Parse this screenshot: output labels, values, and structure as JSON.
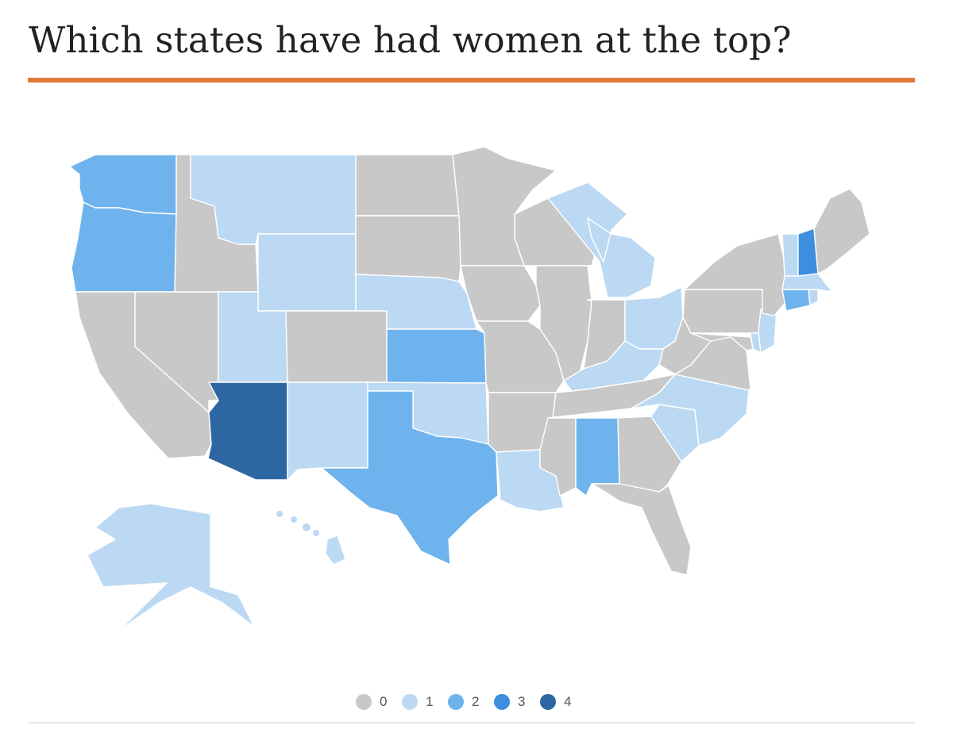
{
  "header": {
    "title": "Which states have had women at the top?",
    "accent_color": "#e07b39"
  },
  "legend": {
    "items": [
      {
        "label": "0",
        "value": 0,
        "color": "#c8c8c8"
      },
      {
        "label": "1",
        "value": 1,
        "color": "#bcd9f3"
      },
      {
        "label": "2",
        "value": 2,
        "color": "#6fb3ee"
      },
      {
        "label": "3",
        "value": 3,
        "color": "#3e8ee0"
      },
      {
        "label": "4",
        "value": 4,
        "color": "#2c67a1"
      }
    ]
  },
  "map": {
    "type": "choropleth",
    "states": [
      {
        "name": "Washington",
        "value": 2
      },
      {
        "name": "Oregon",
        "value": 2
      },
      {
        "name": "California",
        "value": 0
      },
      {
        "name": "Nevada",
        "value": 0
      },
      {
        "name": "Idaho",
        "value": 0
      },
      {
        "name": "Montana",
        "value": 1
      },
      {
        "name": "Wyoming",
        "value": 1
      },
      {
        "name": "Utah",
        "value": 1
      },
      {
        "name": "Arizona",
        "value": 4
      },
      {
        "name": "Colorado",
        "value": 0
      },
      {
        "name": "New Mexico",
        "value": 1
      },
      {
        "name": "North Dakota",
        "value": 0
      },
      {
        "name": "South Dakota",
        "value": 0
      },
      {
        "name": "Nebraska",
        "value": 1
      },
      {
        "name": "Kansas",
        "value": 2
      },
      {
        "name": "Oklahoma",
        "value": 1
      },
      {
        "name": "Texas",
        "value": 2
      },
      {
        "name": "Minnesota",
        "value": 0
      },
      {
        "name": "Iowa",
        "value": 0
      },
      {
        "name": "Missouri",
        "value": 0
      },
      {
        "name": "Arkansas",
        "value": 0
      },
      {
        "name": "Louisiana",
        "value": 1
      },
      {
        "name": "Wisconsin",
        "value": 0
      },
      {
        "name": "Illinois",
        "value": 0
      },
      {
        "name": "Michigan",
        "value": 1
      },
      {
        "name": "Indiana",
        "value": 0
      },
      {
        "name": "Ohio",
        "value": 1
      },
      {
        "name": "Kentucky",
        "value": 1
      },
      {
        "name": "Tennessee",
        "value": 0
      },
      {
        "name": "Mississippi",
        "value": 0
      },
      {
        "name": "Alabama",
        "value": 2
      },
      {
        "name": "Georgia",
        "value": 0
      },
      {
        "name": "Florida",
        "value": 0
      },
      {
        "name": "South Carolina",
        "value": 1
      },
      {
        "name": "North Carolina",
        "value": 1
      },
      {
        "name": "Virginia",
        "value": 0
      },
      {
        "name": "West Virginia",
        "value": 0
      },
      {
        "name": "Maryland",
        "value": 0
      },
      {
        "name": "Delaware",
        "value": 1
      },
      {
        "name": "Pennsylvania",
        "value": 0
      },
      {
        "name": "New Jersey",
        "value": 1
      },
      {
        "name": "New York",
        "value": 0
      },
      {
        "name": "Connecticut",
        "value": 2
      },
      {
        "name": "Rhode Island",
        "value": 1
      },
      {
        "name": "Massachusetts",
        "value": 1
      },
      {
        "name": "Vermont",
        "value": 1
      },
      {
        "name": "New Hampshire",
        "value": 3
      },
      {
        "name": "Maine",
        "value": 0
      },
      {
        "name": "Alaska",
        "value": 1
      },
      {
        "name": "Hawaii",
        "value": 1
      }
    ]
  }
}
